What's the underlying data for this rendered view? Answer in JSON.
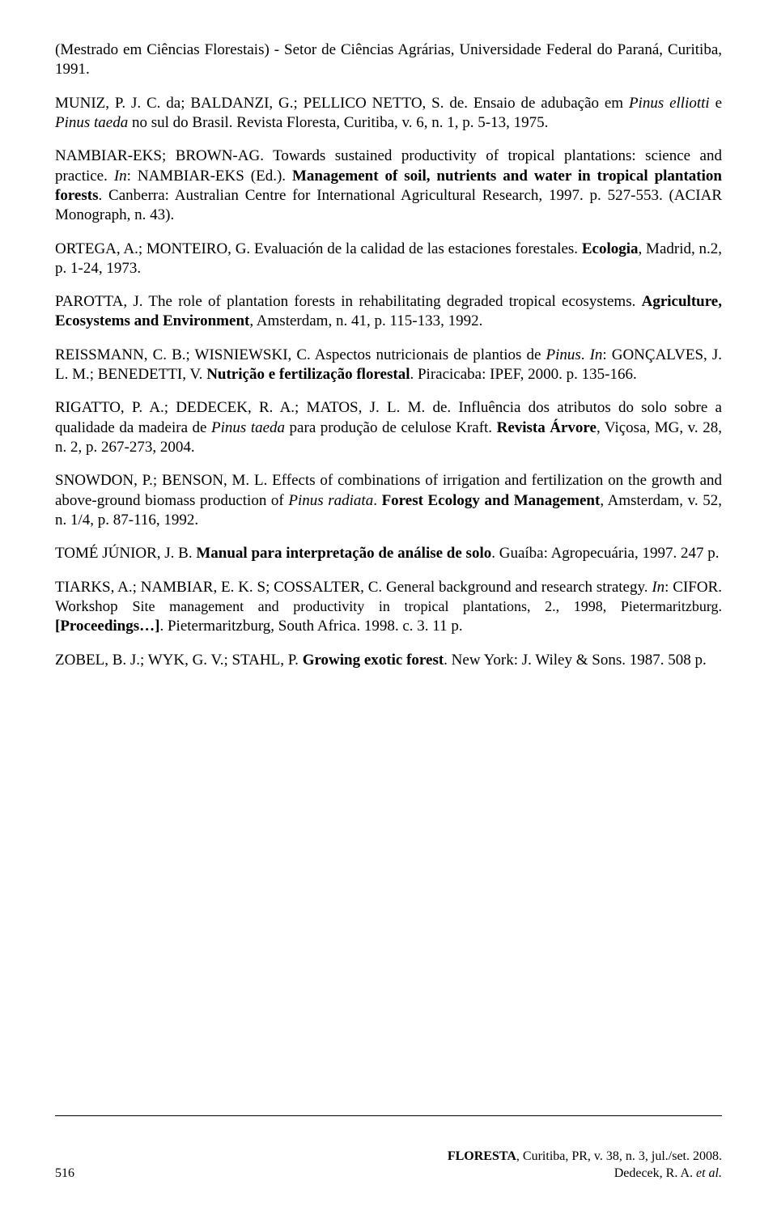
{
  "refs": {
    "r1a": "(Mestrado em Ciências Florestais) - Setor de Ciências Agrárias, Universidade Federal do Paraná, Curitiba, 1991.",
    "r2a": "MUNIZ, P. J. C. da; BALDANZI, G.; PELLICO NETTO, S. de. Ensaio de adubação em ",
    "r2b": "Pinus elliotti",
    "r2c": " e ",
    "r2d": "Pinus taeda",
    "r2e": " no sul do Brasil. Revista Floresta, Curitiba, v. 6, n. 1, p. 5-13, 1975.",
    "r3a": "NAMBIAR-EKS; BROWN-AG. Towards sustained productivity of tropical plantations: science and practice. ",
    "r3b": "In",
    "r3c": ": NAMBIAR-EKS (Ed.). ",
    "r3d": "Management of soil, nutrients and water in tropical plantation forests",
    "r3e": ". Canberra: Australian Centre for International Agricultural Research, 1997. p. 527-553. (ACIAR Monograph, n. 43).",
    "r4a": "ORTEGA, A.; MONTEIRO, G. Evaluación de la calidad de las estaciones forestales. ",
    "r4b": "Ecologia",
    "r4c": ", Madrid, n.2, p. 1-24, 1973.",
    "r5a": "PAROTTA, J. The role of plantation forests in rehabilitating degraded tropical ecosystems. ",
    "r5b": "Agriculture, Ecosystems and Environment",
    "r5c": ", Amsterdam, n. 41, p. 115-133, 1992.",
    "r6a": "REISSMANN, C. B.; WISNIEWSKI, C. Aspectos nutricionais de plantios de ",
    "r6b": "Pinus",
    "r6c": ". ",
    "r6d": "In",
    "r6e": ": GONÇALVES, J. L. M.; BENEDETTI, V. ",
    "r6f": "Nutrição e fertilização florestal",
    "r6g": ". Piracicaba: IPEF, 2000. p. 135-166.",
    "r7a": "RIGATTO, P. A.; DEDECEK, R. A.; MATOS, J. L. M. de. Influência dos atributos do solo sobre a qualidade da madeira de ",
    "r7b": "Pinus taeda",
    "r7c": " para produção de celulose Kraft. ",
    "r7d": "Revista Árvore",
    "r7e": ", Viçosa, MG, v. 28, n. 2, p. 267-273, 2004.",
    "r8a": "SNOWDON, P.; BENSON, M. L. Effects of combinations of irrigation and fertilization on the growth and above-ground biomass production of ",
    "r8b": "Pinus radiata",
    "r8c": ". ",
    "r8d": "Forest Ecology and Management",
    "r8e": ", Amsterdam, v. 52, n. 1/4, p. 87-116, 1992.",
    "r9a": "TOMÉ JÚNIOR, J. B. ",
    "r9b": "Manual para interpretação de análise de solo",
    "r9c": ". Guaíba: Agropecuária, 1997. 247 p.",
    "r10a": "TIARKS, A.; NAMBIAR, E. K. S; COSSALTER, C. General background and research strategy. ",
    "r10b": "In",
    "r10c": ": CIFOR. Workshop ",
    "r10d": "Site management and productivity in tropical plantations, 2., 1998, Pietermaritzburg.",
    "r10e": " ",
    "r10f": "[Proceedings…]",
    "r10g": ". Pietermaritzburg, South Africa. 1998. c. 3. 11 p.",
    "r11a": "ZOBEL, B. J.; WYK, G. V.; STAHL, P. ",
    "r11b": "Growing exotic forest",
    "r11c": ". New York: J. Wiley & Sons. 1987. 508 p."
  },
  "footer": {
    "page": "516",
    "journal_a": "FLORESTA",
    "journal_b": ", Curitiba, PR, v. 38, n. 3, jul./set. 2008.",
    "authors_a": "Dedecek, R. A. ",
    "authors_b": "et al."
  }
}
